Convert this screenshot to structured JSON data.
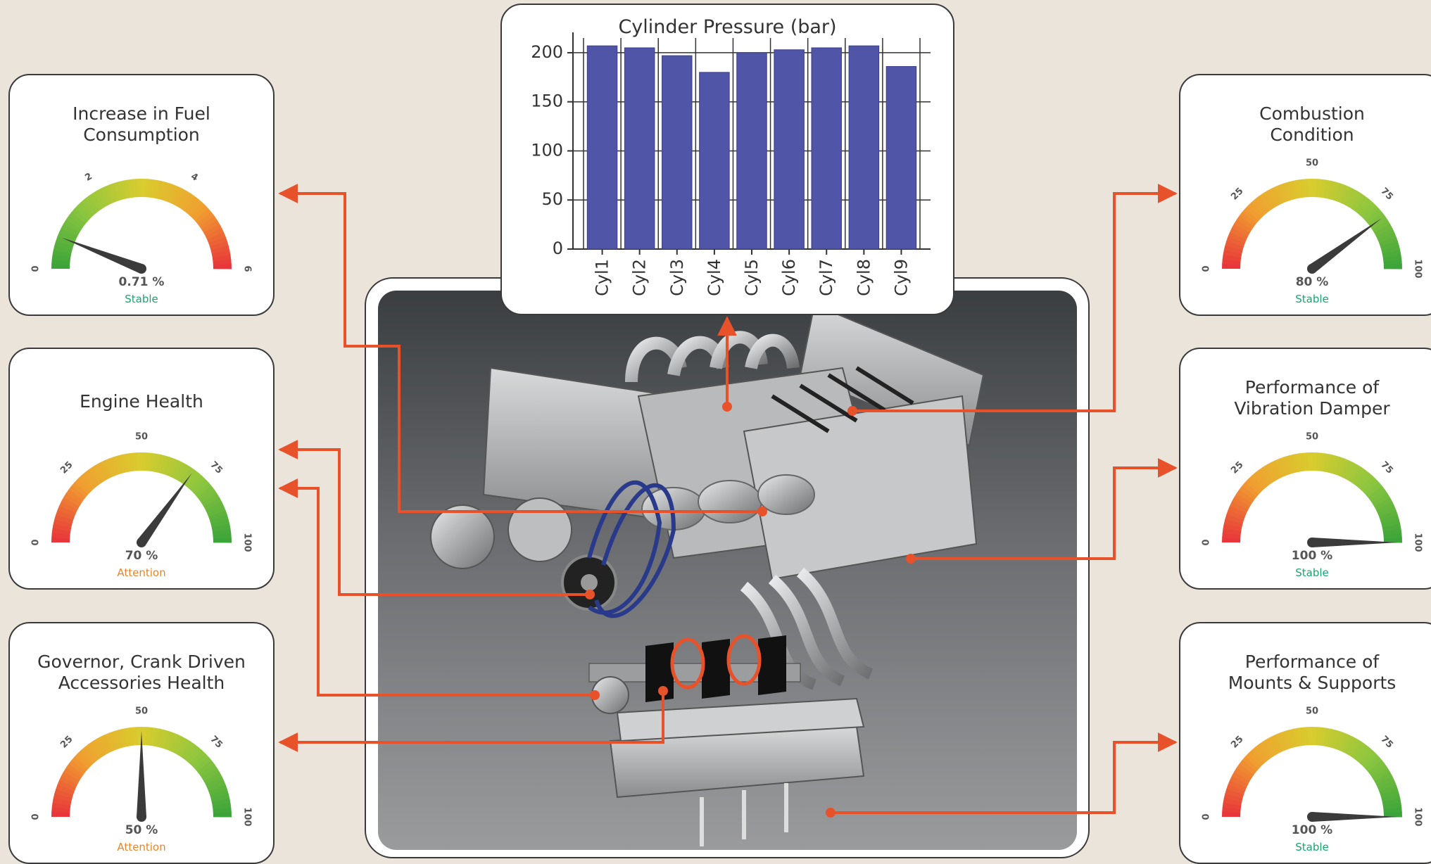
{
  "colors": {
    "background": "#ebe4da",
    "connector": "#e8522a",
    "bar": "#5055a8",
    "status_stable": "#1aa56f",
    "status_attention": "#e8862a"
  },
  "gauges": {
    "fuel": {
      "title": "Increase in Fuel\nConsumption",
      "ticks": [
        "0",
        "2",
        "4",
        "6"
      ],
      "value_label": "0.71 %",
      "status": "Stable",
      "status_kind": "stable",
      "scale_max": 6,
      "value": 0.71,
      "colors": "green-to-red"
    },
    "engine": {
      "title": "Engine Health",
      "ticks": [
        "0",
        "25",
        "50",
        "75",
        "100"
      ],
      "value_label": "70 %",
      "status": "Attention",
      "status_kind": "attention",
      "scale_max": 100,
      "value": 70,
      "colors": "red-to-green"
    },
    "governor": {
      "title": "Governor, Crank Driven\nAccessories Health",
      "ticks": [
        "0",
        "25",
        "50",
        "75",
        "100"
      ],
      "value_label": "50 %",
      "status": "Attention",
      "status_kind": "attention",
      "scale_max": 100,
      "value": 50,
      "colors": "red-to-green"
    },
    "combustion": {
      "title": "Combustion\nCondition",
      "ticks": [
        "0",
        "25",
        "50",
        "75",
        "100"
      ],
      "value_label": "80 %",
      "status": "Stable",
      "status_kind": "stable",
      "scale_max": 100,
      "value": 80,
      "colors": "red-to-green"
    },
    "vibration": {
      "title": "Performance of\nVibration Damper",
      "ticks": [
        "0",
        "25",
        "50",
        "75",
        "100"
      ],
      "value_label": "100 %",
      "status": "Stable",
      "status_kind": "stable",
      "scale_max": 100,
      "value": 100,
      "colors": "red-to-green"
    },
    "mounts": {
      "title": "Performance of\nMounts & Supports",
      "ticks": [
        "0",
        "25",
        "50",
        "75",
        "100"
      ],
      "value_label": "100 %",
      "status": "Stable",
      "status_kind": "stable",
      "scale_max": 100,
      "value": 100,
      "colors": "red-to-green"
    }
  },
  "chart_data": {
    "type": "bar",
    "title": "Cylinder Pressure (bar)",
    "categories": [
      "Cyl1",
      "Cyl2",
      "Cyl3",
      "Cyl4",
      "Cyl5",
      "Cyl6",
      "Cyl7",
      "Cyl8",
      "Cyl9"
    ],
    "values": [
      207,
      205,
      197,
      180,
      200,
      203,
      205,
      207,
      186
    ],
    "yticks": [
      "0",
      "50",
      "100",
      "150",
      "200"
    ],
    "ylim": [
      0,
      215
    ],
    "grid": true,
    "xlabel": "",
    "ylabel": ""
  }
}
